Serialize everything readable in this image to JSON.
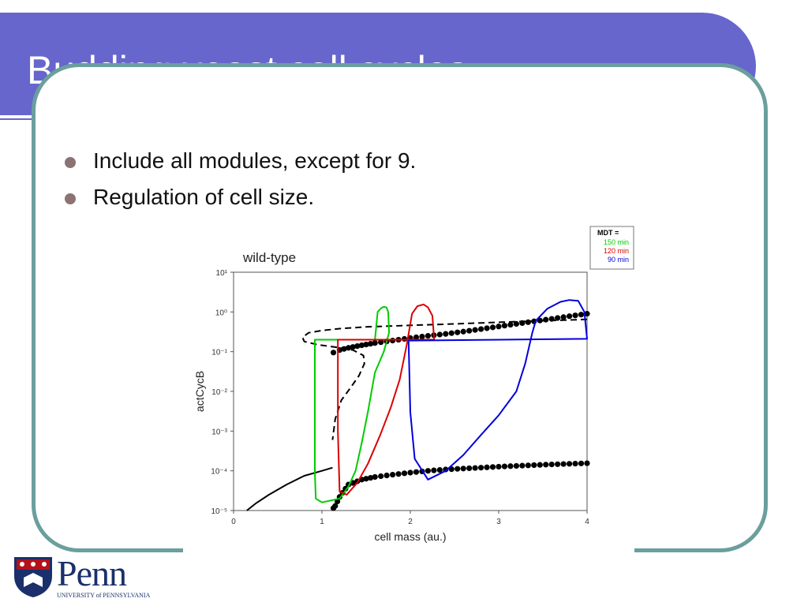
{
  "slide": {
    "title": "Budding yeast cell cycles",
    "bullets": [
      "Include all modules, except for 9.",
      "Regulation of cell size."
    ],
    "colors": {
      "title_bg": "#6666cc",
      "frame": "#6a9f9d",
      "bullet": "#8a7372"
    }
  },
  "logo": {
    "word": "Penn",
    "subtitle": "UNIVERSITY of PENNSYLVANIA"
  },
  "chart_data": {
    "type": "line",
    "title": "wild-type",
    "xlabel": "cell mass (au.)",
    "ylabel": "actCycB",
    "xlim": [
      0,
      4
    ],
    "ylim": [
      1e-05,
      10
    ],
    "yscale": "log",
    "xticks": [
      "0",
      "1",
      "2",
      "3",
      "4"
    ],
    "yticks": [
      "10⁻⁵",
      "10⁻⁴",
      "10⁻³",
      "10⁻²",
      "10⁻¹",
      "10⁰",
      "10¹"
    ],
    "legend": {
      "title": "MDT =",
      "position": "top-right",
      "entries": [
        "150 min",
        "120 min",
        "90 min"
      ]
    },
    "series": [
      {
        "style": "dotted-stable",
        "color": "#000000",
        "x": [
          1.13,
          1.2,
          1.3,
          1.45,
          1.6,
          1.8,
          2.0,
          2.2,
          2.4,
          2.6,
          2.8,
          3.0,
          3.2,
          3.4,
          3.6,
          3.8,
          4.0
        ],
        "y": [
          0.095,
          0.11,
          0.125,
          0.145,
          0.165,
          0.19,
          0.22,
          0.25,
          0.28,
          0.32,
          0.37,
          0.43,
          0.5,
          0.58,
          0.67,
          0.78,
          0.9
        ]
      },
      {
        "style": "dotted-stable",
        "color": "#000000",
        "x": [
          1.13,
          1.15,
          1.2,
          1.3,
          1.45,
          1.6,
          1.8,
          2.0,
          2.2,
          2.4,
          2.6,
          2.8,
          3.0,
          3.2,
          3.4,
          3.6,
          3.8,
          4.0
        ],
        "y": [
          1.15e-05,
          1.3e-05,
          2.2e-05,
          4.5e-05,
          6e-05,
          7e-05,
          8e-05,
          9e-05,
          0.0001,
          0.000108,
          0.000114,
          0.00012,
          0.000127,
          0.000133,
          0.000139,
          0.000145,
          0.00015,
          0.000155
        ]
      },
      {
        "style": "dashed-unstable",
        "color": "#000000",
        "x": [
          4.0,
          3.5,
          3.0,
          2.5,
          2.0,
          1.5,
          1.2,
          1.0,
          0.85,
          0.78,
          0.8,
          0.95,
          1.15,
          1.35,
          1.47,
          1.48,
          1.42,
          1.32,
          1.22,
          1.15,
          1.12
        ],
        "y": [
          0.65,
          0.6,
          0.55,
          0.5,
          0.46,
          0.42,
          0.38,
          0.34,
          0.3,
          0.23,
          0.18,
          0.15,
          0.13,
          0.11,
          0.08,
          0.05,
          0.025,
          0.012,
          0.006,
          0.002,
          0.0006
        ]
      },
      {
        "style": "solid",
        "color": "#000000",
        "x": [
          0.15,
          0.25,
          0.4,
          0.6,
          0.8,
          1.0,
          1.12
        ],
        "y": [
          1e-05,
          1.5e-05,
          2.5e-05,
          4.5e-05,
          7.5e-05,
          0.0001,
          0.00012
        ]
      },
      {
        "name": "150 min",
        "color": "#00cc00",
        "x": [
          1.2,
          1.6,
          1.63,
          1.67,
          1.7,
          1.73,
          1.75,
          1.76,
          1.7,
          1.6,
          1.52,
          1.45,
          1.38,
          1.3,
          1.2,
          1.0,
          0.93,
          0.92,
          0.92,
          1.0,
          1.2
        ],
        "y": [
          0.2,
          0.2,
          1.0,
          1.25,
          1.35,
          1.3,
          1.0,
          0.3,
          0.1,
          0.03,
          0.003,
          0.0005,
          0.0001,
          4e-05,
          2e-05,
          1.6e-05,
          2e-05,
          0.0001,
          0.2,
          0.2,
          0.2
        ]
      },
      {
        "name": "120 min",
        "color": "#dd0000",
        "x": [
          1.55,
          2.27,
          2.25,
          2.2,
          2.15,
          2.08,
          2.02,
          1.96,
          1.88,
          1.78,
          1.66,
          1.52,
          1.4,
          1.28,
          1.2,
          1.18,
          1.18,
          1.25,
          1.55
        ],
        "y": [
          0.2,
          0.2,
          0.8,
          1.3,
          1.55,
          1.4,
          0.9,
          0.15,
          0.02,
          0.004,
          0.0008,
          0.00015,
          5e-05,
          2.5e-05,
          3e-05,
          0.001,
          0.2,
          0.2,
          0.2
        ]
      },
      {
        "name": "90 min",
        "color": "#0000dd",
        "x": [
          2.0,
          4.0,
          3.97,
          3.9,
          3.8,
          3.7,
          3.55,
          3.42,
          3.38,
          3.3,
          3.2,
          3.0,
          2.8,
          2.6,
          2.4,
          2.2,
          2.05,
          2.0,
          1.98,
          2.0
        ],
        "y": [
          0.19,
          0.21,
          1.0,
          1.9,
          2.0,
          1.8,
          1.2,
          0.6,
          0.3,
          0.05,
          0.01,
          0.0025,
          0.0008,
          0.00025,
          0.0001,
          6e-05,
          0.0002,
          0.003,
          0.19,
          0.19
        ]
      }
    ]
  }
}
